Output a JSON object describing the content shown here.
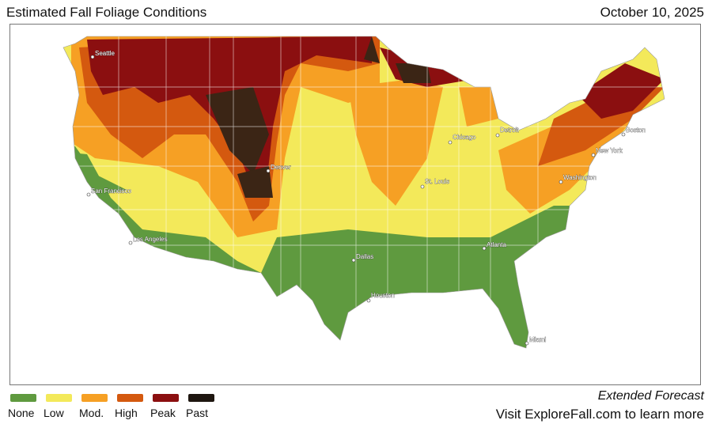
{
  "header": {
    "title": "Estimated Fall Foliage Conditions",
    "date": "October 10, 2025"
  },
  "legend": [
    {
      "label": "None",
      "color": "#5f9a3f"
    },
    {
      "label": "Low",
      "color": "#f3e95a"
    },
    {
      "label": "Mod.",
      "color": "#f6a024"
    },
    {
      "label": "High",
      "color": "#d4590f"
    },
    {
      "label": "Peak",
      "color": "#8b0f10"
    },
    {
      "label": "Past",
      "color": "#1e1610"
    }
  ],
  "cities": [
    "Seattle",
    "San Francisco",
    "Los Angeles",
    "Denver",
    "Dallas",
    "Houston",
    "Chicago",
    "Detroit",
    "St. Louis",
    "Atlanta",
    "Miami",
    "Washington",
    "New York",
    "Boston"
  ],
  "footer": {
    "forecast": "Extended Forecast",
    "visit": "Visit ExploreFall.com to learn more"
  }
}
